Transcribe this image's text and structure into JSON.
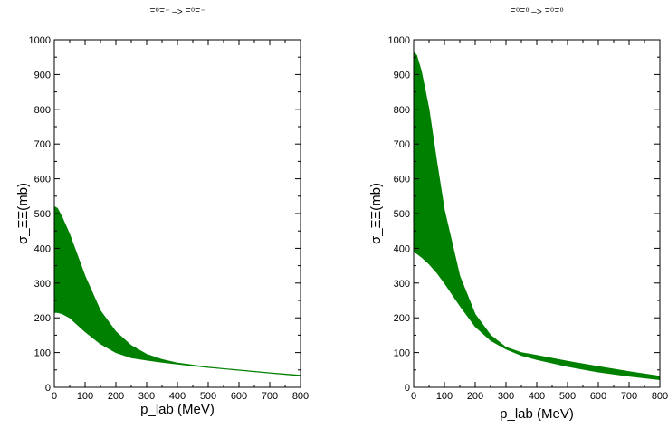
{
  "chart_data": [
    {
      "type": "area",
      "title": "Ξ⁰Ξ⁻ –> Ξ⁰Ξ⁻",
      "xlabel": "p_lab (MeV)",
      "ylabel": "σ_ΞΞ(mb)",
      "xlim": [
        0,
        800
      ],
      "ylim": [
        0,
        1000
      ],
      "xticks": [
        0,
        100,
        200,
        300,
        400,
        500,
        600,
        700,
        800
      ],
      "yticks": [
        0,
        100,
        200,
        300,
        400,
        500,
        600,
        700,
        800,
        900,
        1000
      ],
      "grid": false,
      "fill_color": "#008000",
      "series": [
        {
          "x": [
            0,
            10,
            25,
            50,
            75,
            100,
            150,
            200,
            250,
            300,
            350,
            400,
            500,
            600,
            700,
            800
          ],
          "upper": [
            520,
            515,
            490,
            440,
            380,
            320,
            220,
            160,
            120,
            95,
            80,
            70,
            58,
            50,
            42,
            35
          ],
          "lower": [
            215,
            215,
            212,
            200,
            180,
            160,
            125,
            100,
            85,
            78,
            72,
            67,
            57,
            49,
            41,
            33
          ]
        }
      ]
    },
    {
      "type": "area",
      "title": "Ξ⁰Ξ⁰ –> Ξ⁰Ξ⁰",
      "xlabel": "p_lab (MeV)",
      "ylabel": "σ_ΞΞ(mb)",
      "xlim": [
        0,
        800
      ],
      "ylim": [
        0,
        1000
      ],
      "xticks": [
        0,
        100,
        200,
        300,
        400,
        500,
        600,
        700,
        800
      ],
      "yticks": [
        0,
        100,
        200,
        300,
        400,
        500,
        600,
        700,
        800,
        900,
        1000
      ],
      "grid": false,
      "fill_color": "#008000",
      "series": [
        {
          "x": [
            0,
            10,
            25,
            50,
            75,
            100,
            150,
            200,
            250,
            300,
            350,
            400,
            500,
            600,
            700,
            800
          ],
          "upper": [
            965,
            955,
            910,
            800,
            650,
            510,
            320,
            210,
            150,
            115,
            100,
            92,
            75,
            60,
            45,
            32
          ],
          "lower": [
            390,
            385,
            375,
            355,
            330,
            300,
            235,
            175,
            135,
            110,
            92,
            80,
            60,
            44,
            32,
            22
          ]
        }
      ]
    }
  ]
}
